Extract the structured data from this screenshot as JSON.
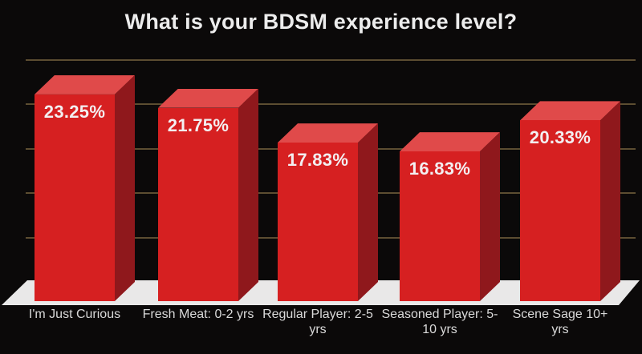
{
  "title": "What is your BDSM experience level?",
  "chart_data": {
    "type": "bar",
    "title": "What is your BDSM experience level?",
    "categories": [
      "I'm Just Curious",
      "Fresh Meat: 0-2 yrs",
      "Regular Player: 2-5 yrs",
      "Seasoned Player: 5-10 yrs",
      "Scene Sage 10+ yrs"
    ],
    "values": [
      23.25,
      21.75,
      17.83,
      16.83,
      20.33
    ],
    "value_labels": [
      "23.25%",
      "21.75%",
      "17.83%",
      "16.83%",
      "20.33%"
    ],
    "xlabel": "",
    "ylabel": "",
    "ylim": [
      0,
      25
    ],
    "gridline_step": 5,
    "grid": true,
    "legend_position": "none",
    "style": "3d-bars"
  },
  "colors": {
    "background": "#0b0909",
    "bar_front": "#d62021",
    "bar_top": "#e04a4a",
    "bar_side": "#8f181c",
    "floor": "#e9e8e8",
    "gridline": "#5c4d31",
    "title_text": "#ececec",
    "value_text": "#f3eff1",
    "category_text": "#d9d9d9"
  }
}
